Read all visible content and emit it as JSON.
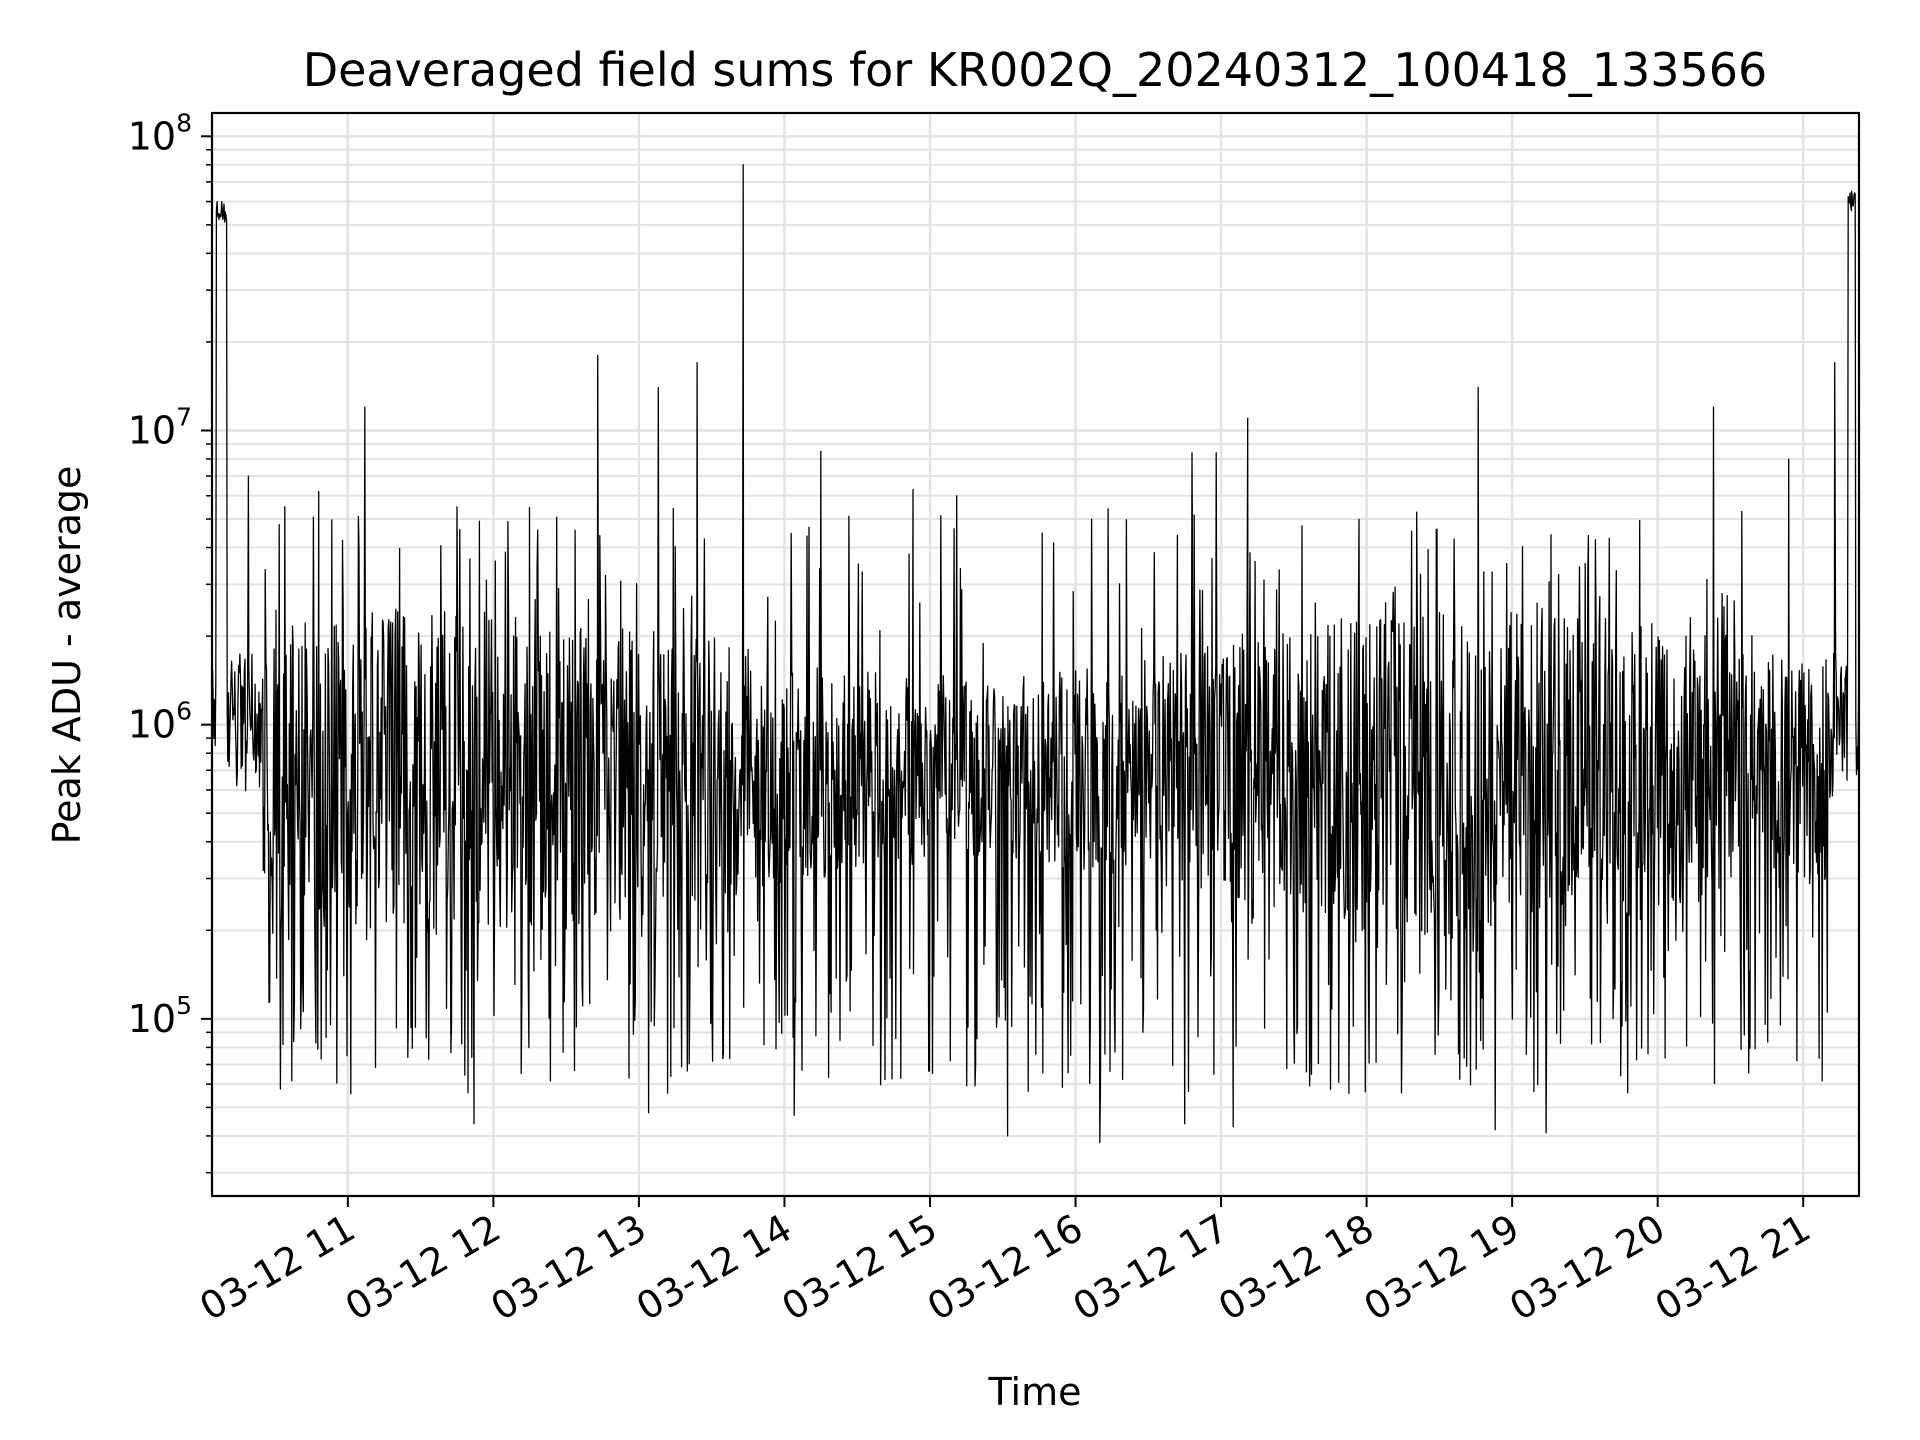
{
  "chart_data": {
    "type": "line",
    "title": "Deaveraged field sums for KR002Q_20240312_100418_133566",
    "xlabel": "Time",
    "ylabel": "Peak ADU - average",
    "y_scale": "log",
    "ylim": [
      25000,
      120000000
    ],
    "xlim": [
      "2024-03-12 10:04",
      "2024-03-12 21:23"
    ],
    "grid": true,
    "line_color": "#000000",
    "grid_color": "#e3e3e3",
    "x_ticks": [
      {
        "value": "2024-03-12 11:00",
        "label": "03-12 11"
      },
      {
        "value": "2024-03-12 12:00",
        "label": "03-12 12"
      },
      {
        "value": "2024-03-12 13:00",
        "label": "03-12 13"
      },
      {
        "value": "2024-03-12 14:00",
        "label": "03-12 14"
      },
      {
        "value": "2024-03-12 15:00",
        "label": "03-12 15"
      },
      {
        "value": "2024-03-12 16:00",
        "label": "03-12 16"
      },
      {
        "value": "2024-03-12 17:00",
        "label": "03-12 17"
      },
      {
        "value": "2024-03-12 18:00",
        "label": "03-12 18"
      },
      {
        "value": "2024-03-12 19:00",
        "label": "03-12 19"
      },
      {
        "value": "2024-03-12 20:00",
        "label": "03-12 20"
      },
      {
        "value": "2024-03-12 21:00",
        "label": "03-12 21"
      }
    ],
    "y_ticks": [
      {
        "value": 100000,
        "base": "10",
        "exp": "5"
      },
      {
        "value": 1000000,
        "base": "10",
        "exp": "6"
      },
      {
        "value": 10000000,
        "base": "10",
        "exp": "7"
      },
      {
        "value": 100000000,
        "base": "10",
        "exp": "8"
      }
    ],
    "series": [
      {
        "baseline_level": 700000,
        "noise_description": "dense noisy trace mostly between 1e5 and 2e6",
        "peaks": [
          {
            "x": "2024-03-12 10:08",
            "y": 60000000
          },
          {
            "x": "2024-03-12 10:19",
            "y": 7000000
          },
          {
            "x": "2024-03-12 10:34",
            "y": 5500000
          },
          {
            "x": "2024-03-12 10:48",
            "y": 6200000
          },
          {
            "x": "2024-03-12 11:07",
            "y": 12000000
          },
          {
            "x": "2024-03-12 11:45",
            "y": 5500000
          },
          {
            "x": "2024-03-12 12:43",
            "y": 18000000
          },
          {
            "x": "2024-03-12 13:08",
            "y": 14000000
          },
          {
            "x": "2024-03-12 13:24",
            "y": 17000000
          },
          {
            "x": "2024-03-12 13:43",
            "y": 80000000
          },
          {
            "x": "2024-03-12 14:15",
            "y": 8500000
          },
          {
            "x": "2024-03-12 14:53",
            "y": 6300000
          },
          {
            "x": "2024-03-12 15:11",
            "y": 6000000
          },
          {
            "x": "2024-03-12 16:42",
            "y": 4400000
          },
          {
            "x": "2024-03-12 16:48",
            "y": 8400000
          },
          {
            "x": "2024-03-12 16:58",
            "y": 8400000
          },
          {
            "x": "2024-03-12 17:11",
            "y": 11000000
          },
          {
            "x": "2024-03-12 18:46",
            "y": 14000000
          },
          {
            "x": "2024-03-12 20:23",
            "y": 12000000
          },
          {
            "x": "2024-03-12 20:54",
            "y": 8000000
          },
          {
            "x": "2024-03-12 21:13",
            "y": 17000000
          },
          {
            "x": "2024-03-12 21:20",
            "y": 65000000
          }
        ],
        "troughs": [
          {
            "x": "2024-03-12 10:49",
            "y": 73000
          },
          {
            "x": "2024-03-12 11:52",
            "y": 44000
          },
          {
            "x": "2024-03-12 13:04",
            "y": 48000
          },
          {
            "x": "2024-03-12 14:04",
            "y": 47000
          },
          {
            "x": "2024-03-12 15:32",
            "y": 40000
          },
          {
            "x": "2024-03-12 16:10",
            "y": 38000
          },
          {
            "x": "2024-03-12 16:45",
            "y": 44000
          },
          {
            "x": "2024-03-12 17:05",
            "y": 43000
          },
          {
            "x": "2024-03-12 18:53",
            "y": 42000
          },
          {
            "x": "2024-03-12 19:14",
            "y": 41000
          }
        ]
      }
    ]
  }
}
